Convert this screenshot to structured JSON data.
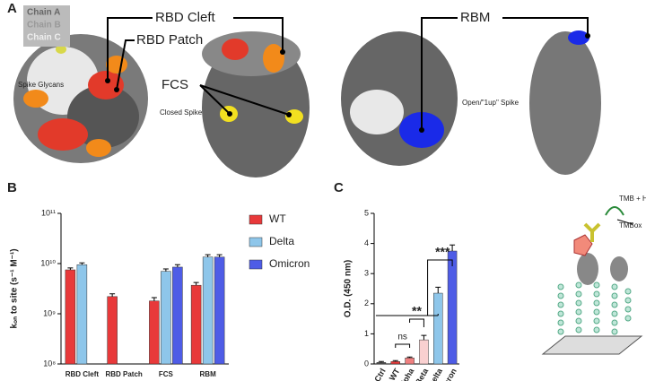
{
  "panel_a": {
    "label": "A",
    "chains": [
      "Chain A",
      "Chain B",
      "Chain C"
    ],
    "rbd_cleft": "RBD Cleft",
    "rbd_patch": "RBD Patch",
    "fcs": "FCS",
    "glycans": "Spike Glycans",
    "closed": "Closed Spike",
    "rbm": "RBM",
    "open": "Open/\"1up\" Spike"
  },
  "schematic": {
    "reagent": "TMB + H₂O₂",
    "product": "TMBox"
  },
  "chart_data": [
    {
      "type": "bar",
      "panel_label": "B",
      "y_label": "kₒₙ to site (s⁻¹ M⁻¹)",
      "log_scale": true,
      "categories": [
        "RBD Cleft",
        "RBD Patch",
        "FCS",
        "RBM"
      ],
      "series": [
        {
          "name": "WT",
          "color": "#e8393a",
          "values": [
            7500000000,
            2200000000,
            1800000000,
            3700000000
          ],
          "errors": [
            700000000,
            300000000,
            300000000,
            500000000
          ]
        },
        {
          "name": "Delta",
          "color": "#8ec6ea",
          "values": [
            9500000000,
            null,
            7000000000,
            13500000000
          ],
          "errors": [
            800000000,
            null,
            800000000,
            1500000000
          ]
        },
        {
          "name": "Omicron",
          "color": "#4e5ce6",
          "values": [
            null,
            null,
            8500000000,
            13500000000
          ],
          "errors": [
            null,
            null,
            1000000000,
            1500000000
          ]
        }
      ],
      "ylim": [
        100000000,
        100000000000
      ],
      "yticks": [
        {
          "value": 100000000,
          "label": "10⁸"
        },
        {
          "value": 1000000000,
          "label": "10⁹"
        },
        {
          "value": 10000000000,
          "label": "10¹⁰"
        },
        {
          "value": 100000000000,
          "label": "10¹¹"
        }
      ],
      "legend": "right"
    },
    {
      "type": "bar",
      "panel_label": "C",
      "y_label": "O.D. (450 nm)",
      "categories": [
        "Ctrl",
        "WT",
        "Alpha",
        "Beta",
        "Delta",
        "Omicron"
      ],
      "values": [
        0.05,
        0.08,
        0.2,
        0.8,
        2.35,
        3.75
      ],
      "errors": [
        0.03,
        0.03,
        0.03,
        0.15,
        0.2,
        0.2
      ],
      "colors": [
        "#555555",
        "#e8393a",
        "#f08080",
        "#f9d0d0",
        "#8ec6ea",
        "#4e5ce6"
      ],
      "ylim": [
        0,
        5
      ],
      "yticks": [
        0,
        1,
        2,
        3,
        4,
        5
      ],
      "annotations": [
        "ns",
        "**",
        "***"
      ]
    }
  ]
}
